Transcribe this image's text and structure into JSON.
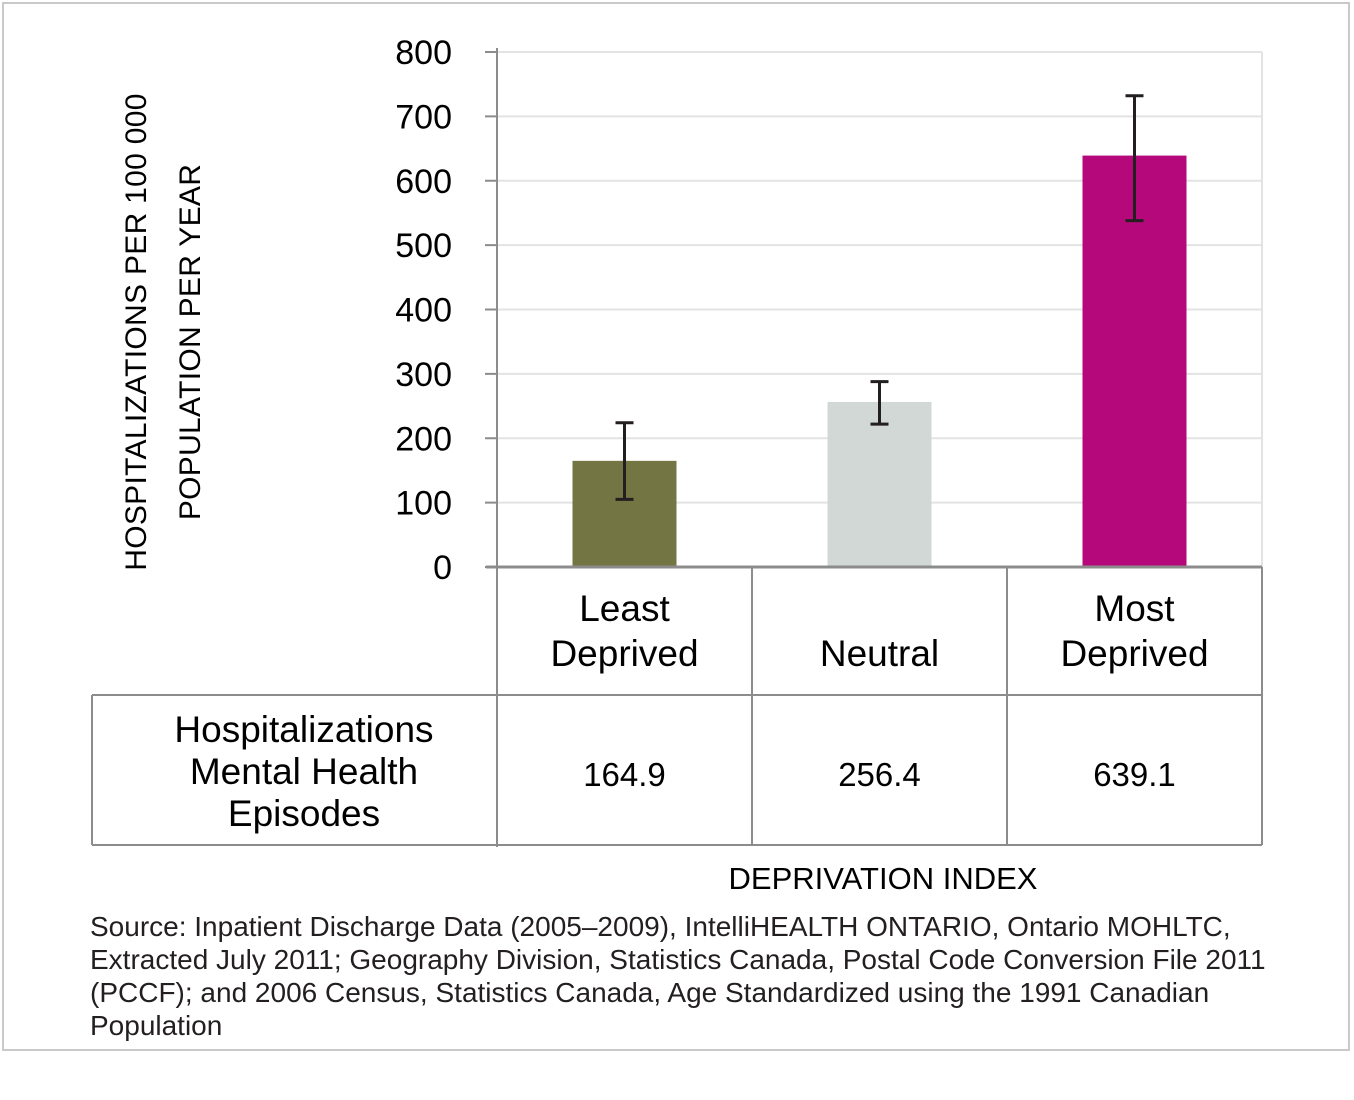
{
  "chart_data": {
    "type": "bar",
    "ylabel_lines": [
      "HOSPITALIZATIONS PER 100 000",
      "POPULATION PER YEAR"
    ],
    "xlabel": "DEPRIVATION INDEX",
    "ylim": [
      0,
      800
    ],
    "yticks": [
      "0",
      "100",
      "200",
      "300",
      "400",
      "500",
      "600",
      "700",
      "800"
    ],
    "grid": true,
    "categories": [
      {
        "lines": [
          "Least",
          "Deprived"
        ]
      },
      {
        "lines": [
          "Neutral"
        ]
      },
      {
        "lines": [
          "Most",
          "Deprived"
        ]
      }
    ],
    "values": [
      164.9,
      256.4,
      639.1
    ],
    "error_low": [
      105,
      222,
      538
    ],
    "error_high": [
      224,
      288,
      732
    ],
    "colors": [
      "#737543",
      "#d2d8d6",
      "#b5087a"
    ],
    "table": {
      "row_label_lines": [
        "Hospitalizations",
        "Mental Health",
        "Episodes"
      ],
      "cells": [
        "164.9",
        "256.4",
        "639.1"
      ]
    }
  },
  "source_note": "Source: Inpatient Discharge Data (2005–2009), IntelliHEALTH ONTARIO, Ontario MOHLTC, Extracted July 2011; Geography Division, Statistics Canada, Postal Code Conversion File 2011 (PCCF); and 2006 Census, Statistics Canada, Age Standardized using the 1991 Canadian Population"
}
